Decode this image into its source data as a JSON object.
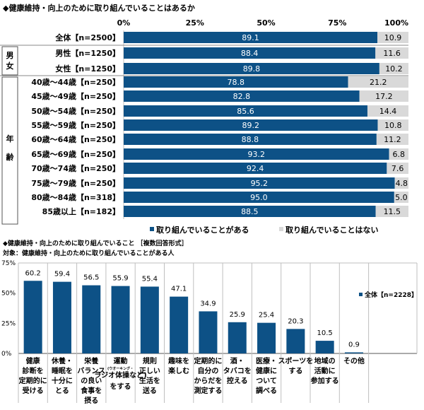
{
  "colors": {
    "yes": "#0d5186",
    "no": "#d9d9d9",
    "grid": "#bfbfbf"
  },
  "chart_data": [
    {
      "type": "bar",
      "orientation": "horizontal-stacked",
      "title": "◆健康維持・向上のために取り組んでいることはあるか",
      "xlim": [
        0,
        100
      ],
      "ticks": [
        "0%",
        "25%",
        "50%",
        "75%",
        "100%"
      ],
      "groups": [
        {
          "label": "男女",
          "rows": [
            1,
            2
          ]
        },
        {
          "label": "年齢",
          "rows": [
            3,
            4,
            5,
            6,
            7,
            8,
            9,
            10,
            11,
            12
          ]
        }
      ],
      "categories": [
        "全体【n=2500】",
        "男性【n=1250】",
        "女性【n=1250】",
        "40歳～44歳【n=250】",
        "45歳～49歳【n=250】",
        "50歳～54歳【n=250】",
        "55歳～59歳【n=250】",
        "60歳～64歳【n=250】",
        "65歳～69歳【n=250】",
        "70歳～74歳【n=250】",
        "75歳～79歳【n=250】",
        "80歳～84歳【n=318】",
        "85歳以上【n=182】"
      ],
      "series": [
        {
          "name": "取り組んでいることがある",
          "values": [
            89.1,
            88.4,
            89.8,
            78.8,
            82.8,
            85.6,
            89.2,
            88.8,
            93.2,
            92.4,
            95.2,
            95.0,
            88.5
          ]
        },
        {
          "name": "取り組んでいることはない",
          "values": [
            10.9,
            11.6,
            10.2,
            21.2,
            17.2,
            14.4,
            10.8,
            11.2,
            6.8,
            7.6,
            4.8,
            5.0,
            11.5
          ]
        }
      ],
      "legend": "bottom"
    },
    {
      "type": "bar",
      "title": "◆健康維持・向上のために取り組んでいること ［複数回答形式］",
      "subtitle": "対象：健康維持・向上のために取り組んでいることがある人",
      "ylim": [
        0,
        75
      ],
      "ticks": [
        "0%",
        "25%",
        "50%",
        "75%"
      ],
      "categories": [
        "健康\n診断を\n定期的に\n受ける",
        "休養・\n睡眠を\n十分に\nとる",
        "栄養\nバランス\nの良い\n食事を\n摂る",
        "運動\n(ウオーキング・\nラジオ体操など)\nをする",
        "規則\n正しい\n生活を\n送る",
        "趣味を\n楽しむ",
        "定期的に\n自分の\nからだを\n測定する",
        "酒・\nタバコを\n控える",
        "医療・\n健康に\nついて\n調べる",
        "スポーツを\nする",
        "地域の\n活動に\n参加する",
        "その他"
      ],
      "series": [
        {
          "name": "全体【n=2228】",
          "values": [
            60.2,
            59.4,
            56.5,
            55.9,
            55.4,
            47.1,
            34.9,
            25.9,
            25.4,
            20.3,
            10.5,
            0.9
          ]
        }
      ],
      "legend": "top-right"
    }
  ]
}
